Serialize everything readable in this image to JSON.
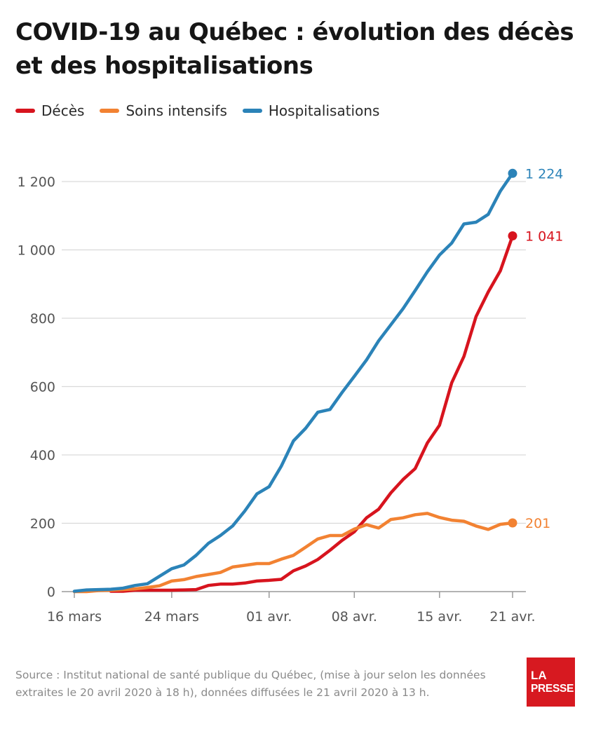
{
  "page": {
    "title": "COVID-19 au Québec : évolution des décès et des hospitalisations",
    "source": "Source : Institut national de santé publique du Québec, (mise à jour selon les données extraites le 20 avril 2020 à 18 h), données diffusées le 21 avril 2020 à 13 h.",
    "logo_line1": "LA",
    "logo_line2": "PRESSE"
  },
  "chart_data": {
    "type": "line",
    "title": "COVID-19 au Québec : évolution des décès et des hospitalisations",
    "xlabel": "",
    "ylabel": "",
    "x_start_label": "16 mars",
    "x_range": [
      0,
      36
    ],
    "ylim": [
      0,
      1200
    ],
    "y_ticks": [
      0,
      200,
      400,
      600,
      800,
      1000,
      1200
    ],
    "y_tick_labels": [
      "0",
      "200",
      "400",
      "600",
      "800",
      "1 000",
      "1 200"
    ],
    "x_ticks": [
      0,
      8,
      16,
      23,
      30,
      36
    ],
    "x_tick_labels": [
      "16 mars",
      "24 mars",
      "01 avr.",
      "08 avr.",
      "15 avr.",
      "21 avr."
    ],
    "grid": true,
    "legend_position": "top-left",
    "series": [
      {
        "name": "Décès",
        "color": "#d7141e",
        "end_label": "1 041",
        "points": [
          [
            3,
            1
          ],
          [
            4,
            1
          ],
          [
            5,
            4
          ],
          [
            6,
            4
          ],
          [
            7,
            4
          ],
          [
            8,
            4
          ],
          [
            9,
            5
          ],
          [
            10,
            6
          ],
          [
            11,
            18
          ],
          [
            12,
            22
          ],
          [
            13,
            22
          ],
          [
            14,
            25
          ],
          [
            15,
            31
          ],
          [
            16,
            33
          ],
          [
            17,
            36
          ],
          [
            18,
            61
          ],
          [
            19,
            75
          ],
          [
            20,
            94
          ],
          [
            21,
            121
          ],
          [
            22,
            150
          ],
          [
            23,
            175
          ],
          [
            24,
            216
          ],
          [
            25,
            241
          ],
          [
            26,
            289
          ],
          [
            27,
            328
          ],
          [
            28,
            360
          ],
          [
            29,
            435
          ],
          [
            30,
            487
          ],
          [
            31,
            611
          ],
          [
            32,
            688
          ],
          [
            33,
            805
          ],
          [
            34,
            877
          ],
          [
            35,
            939
          ],
          [
            36,
            1041
          ]
        ]
      },
      {
        "name": "Soins intensifs",
        "color": "#f28232",
        "end_label": "201",
        "points": [
          [
            0,
            0
          ],
          [
            1,
            0
          ],
          [
            2,
            3
          ],
          [
            3,
            4
          ],
          [
            4,
            6
          ],
          [
            5,
            8
          ],
          [
            6,
            12
          ],
          [
            7,
            17
          ],
          [
            8,
            31
          ],
          [
            9,
            35
          ],
          [
            10,
            44
          ],
          [
            11,
            50
          ],
          [
            12,
            56
          ],
          [
            13,
            72
          ],
          [
            14,
            77
          ],
          [
            15,
            82
          ],
          [
            16,
            82
          ],
          [
            17,
            95
          ],
          [
            18,
            106
          ],
          [
            19,
            130
          ],
          [
            20,
            154
          ],
          [
            21,
            164
          ],
          [
            22,
            164
          ],
          [
            23,
            183
          ],
          [
            24,
            196
          ],
          [
            25,
            186
          ],
          [
            26,
            211
          ],
          [
            27,
            216
          ],
          [
            28,
            225
          ],
          [
            29,
            229
          ],
          [
            30,
            217
          ],
          [
            31,
            209
          ],
          [
            32,
            206
          ],
          [
            33,
            192
          ],
          [
            34,
            182
          ],
          [
            35,
            197
          ],
          [
            36,
            201
          ]
        ]
      },
      {
        "name": "Hospitalisations",
        "color": "#2b83b8",
        "end_label": "1 224",
        "points": [
          [
            0,
            1
          ],
          [
            1,
            5
          ],
          [
            2,
            6
          ],
          [
            3,
            7
          ],
          [
            4,
            10
          ],
          [
            5,
            18
          ],
          [
            6,
            23
          ],
          [
            7,
            45
          ],
          [
            8,
            67
          ],
          [
            9,
            78
          ],
          [
            10,
            106
          ],
          [
            11,
            141
          ],
          [
            12,
            164
          ],
          [
            13,
            192
          ],
          [
            14,
            236
          ],
          [
            15,
            286
          ],
          [
            16,
            307
          ],
          [
            17,
            367
          ],
          [
            18,
            441
          ],
          [
            19,
            478
          ],
          [
            20,
            525
          ],
          [
            21,
            533
          ],
          [
            22,
            583
          ],
          [
            23,
            630
          ],
          [
            24,
            678
          ],
          [
            25,
            734
          ],
          [
            26,
            781
          ],
          [
            27,
            828
          ],
          [
            28,
            881
          ],
          [
            29,
            936
          ],
          [
            30,
            985
          ],
          [
            31,
            1020
          ],
          [
            32,
            1076
          ],
          [
            33,
            1081
          ],
          [
            34,
            1104
          ],
          [
            35,
            1172
          ],
          [
            36,
            1224
          ]
        ]
      }
    ]
  }
}
